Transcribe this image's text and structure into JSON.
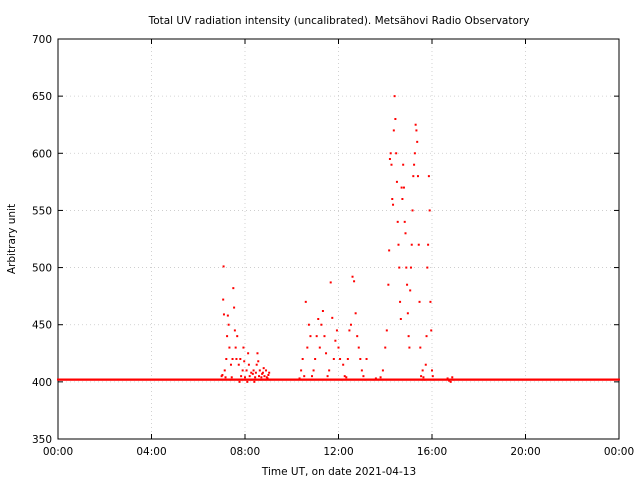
{
  "chart_data": {
    "type": "scatter",
    "title": "Total UV radiation intensity (uncalibrated). Metsähovi Radio Observatory",
    "xlabel": "Time UT, on date 2021-04-13",
    "ylabel": "Arbitrary unit",
    "xlim": [
      "00:00",
      "24:00"
    ],
    "ylim": [
      350,
      700
    ],
    "x_ticks": [
      "00:00",
      "04:00",
      "08:00",
      "12:00",
      "16:00",
      "20:00",
      "00:00"
    ],
    "y_ticks": [
      350,
      400,
      450,
      500,
      550,
      600,
      650,
      700
    ],
    "grid": true,
    "marker_color": "#ff0000",
    "baseline": {
      "value": 402,
      "from": "00:00",
      "to": "24:00",
      "note_interval_minutes": 1
    },
    "series": [
      {
        "x": [
          "07:00",
          "07:02",
          "07:04",
          "07:05",
          "07:06",
          "07:08",
          "07:10",
          "07:12",
          "07:14",
          "07:16",
          "07:18",
          "07:20",
          "07:22",
          "07:24",
          "07:26",
          "07:28",
          "07:30",
          "07:32",
          "07:34",
          "07:36",
          "07:38",
          "07:40",
          "07:42",
          "07:44",
          "07:46",
          "07:48",
          "07:50",
          "07:52",
          "07:54",
          "07:56",
          "07:58",
          "08:00",
          "08:02",
          "08:04",
          "08:06",
          "08:08",
          "08:10",
          "08:12",
          "08:14",
          "08:16",
          "08:18",
          "08:20",
          "08:22",
          "08:24",
          "08:26",
          "08:28",
          "08:30",
          "08:32",
          "08:34",
          "08:36",
          "08:38",
          "08:40",
          "08:42",
          "08:44",
          "08:46",
          "08:48",
          "08:50",
          "08:52",
          "08:54",
          "08:56",
          "08:58",
          "09:00",
          "09:02",
          "09:04",
          "10:20",
          "10:24",
          "10:28",
          "10:32",
          "10:36",
          "10:40",
          "10:44",
          "10:48",
          "10:52",
          "10:56",
          "11:00",
          "11:04",
          "11:08",
          "11:12",
          "11:16",
          "11:20",
          "11:24",
          "11:28",
          "11:32",
          "11:36",
          "11:40",
          "11:44",
          "11:48",
          "11:52",
          "11:56",
          "12:00",
          "12:04",
          "12:08",
          "12:12",
          "12:16",
          "12:20",
          "12:24",
          "12:28",
          "12:32",
          "12:36",
          "12:40",
          "12:44",
          "12:48",
          "12:52",
          "12:56",
          "13:00",
          "13:04",
          "13:08",
          "13:12",
          "13:30",
          "13:36",
          "13:42",
          "13:48",
          "13:54",
          "14:00",
          "14:04",
          "14:08",
          "14:10",
          "14:12",
          "14:14",
          "14:16",
          "14:18",
          "14:20",
          "14:22",
          "14:24",
          "14:26",
          "14:28",
          "14:30",
          "14:32",
          "14:34",
          "14:36",
          "14:38",
          "14:40",
          "14:42",
          "14:44",
          "14:46",
          "14:48",
          "14:50",
          "14:52",
          "14:54",
          "14:56",
          "14:58",
          "15:00",
          "15:02",
          "15:04",
          "15:06",
          "15:08",
          "15:10",
          "15:12",
          "15:14",
          "15:16",
          "15:18",
          "15:20",
          "15:22",
          "15:24",
          "15:26",
          "15:28",
          "15:30",
          "15:32",
          "15:34",
          "15:36",
          "15:38",
          "15:40",
          "15:42",
          "15:44",
          "15:46",
          "15:48",
          "15:50",
          "15:52",
          "15:54",
          "15:56",
          "15:58",
          "16:00",
          "16:02",
          "16:04",
          "16:40",
          "16:44",
          "16:48",
          "16:52",
          "16:56"
        ],
        "y": [
          405,
          406,
          472,
          501,
          459,
          410,
          404,
          420,
          440,
          458,
          450,
          430,
          402,
          415,
          404,
          420,
          482,
          465,
          445,
          430,
          420,
          440,
          402,
          415,
          400,
          420,
          405,
          402,
          410,
          430,
          418,
          404,
          402,
          410,
          400,
          425,
          415,
          405,
          402,
          408,
          402,
          407,
          410,
          400,
          404,
          408,
          415,
          425,
          418,
          405,
          410,
          402,
          404,
          407,
          408,
          412,
          405,
          402,
          410,
          404,
          403,
          406,
          408,
          402,
          403,
          410,
          420,
          405,
          470,
          430,
          450,
          440,
          405,
          410,
          420,
          440,
          455,
          430,
          450,
          462,
          440,
          425,
          405,
          410,
          487,
          456,
          420,
          436,
          445,
          430,
          420,
          402,
          415,
          405,
          404,
          420,
          445,
          450,
          492,
          488,
          460,
          440,
          430,
          420,
          410,
          405,
          402,
          420,
          402,
          403,
          402,
          404,
          410,
          430,
          445,
          485,
          515,
          595,
          600,
          590,
          560,
          555,
          620,
          650,
          630,
          600,
          575,
          540,
          520,
          500,
          470,
          455,
          570,
          560,
          590,
          570,
          540,
          530,
          500,
          485,
          460,
          440,
          430,
          480,
          500,
          520,
          550,
          580,
          590,
          600,
          625,
          620,
          610,
          580,
          520,
          470,
          430,
          405,
          402,
          410,
          404,
          402,
          402,
          415,
          440,
          500,
          520,
          580,
          550,
          470,
          445,
          410,
          405,
          402,
          403,
          401,
          400,
          404,
          402
        ]
      }
    ]
  }
}
